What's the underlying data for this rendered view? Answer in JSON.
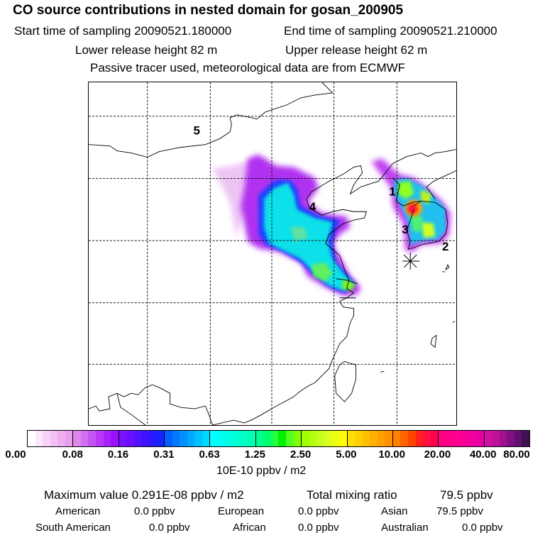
{
  "header": {
    "title": "CO  source contributions in nested domain for gosan_200905",
    "start_label": "Start time of sampling 20090521.180000",
    "end_label": "End time of sampling 20090521.210000",
    "lower_label": "Lower release height   82 m",
    "upper_label": "Upper release height   62 m",
    "tracer_note": "Passive tracer used, meteorological data are from ECMWF"
  },
  "map": {
    "region_labels": [
      "1",
      "2",
      "3",
      "4",
      "5"
    ],
    "receptor_marker": "asterisk-icon"
  },
  "colorbar": {
    "ticks": [
      "0.00",
      "0.08",
      "0.16",
      "0.31",
      "0.63",
      "1.25",
      "2.50",
      "5.00",
      "10.00",
      "20.00",
      "40.00",
      "80.00"
    ],
    "unit": "10E-10 ppbv / m2",
    "colors": [
      [
        "#ffffff",
        "#fbe6fb",
        "#f8d2f8",
        "#f3c0f4",
        "#eeaef0",
        "#e89ded"
      ],
      [
        "#de88ee",
        "#d070f0",
        "#c455f4",
        "#b83af8",
        "#aa22fa",
        "#9a10fc"
      ],
      [
        "#7a10ff",
        "#6810ff",
        "#5412ff",
        "#3e14ff",
        "#2a18ff",
        "#1424ff"
      ],
      [
        "#0060ff",
        "#0078ff",
        "#0090ff",
        "#00a8ff",
        "#00c0ff",
        "#00d8ff"
      ],
      [
        "#00ffff",
        "#00fff2",
        "#00ffe2",
        "#00ffd2",
        "#00ffc2",
        "#00ffb0"
      ],
      [
        "#00ff90",
        "#00ff70",
        "#20ff40",
        "#00f000",
        "#50ff20",
        "#80ff00"
      ],
      [
        "#a0ff00",
        "#b4ff10",
        "#c8ff20",
        "#daff20",
        "#ecff10",
        "#ffff00"
      ],
      [
        "#ffe000",
        "#ffd000",
        "#ffc000",
        "#ffb000",
        "#ffa000",
        "#ff9000"
      ],
      [
        "#ff8000",
        "#ff6400",
        "#ff4400",
        "#ff2020",
        "#ff1040",
        "#ff0050"
      ],
      [
        "#ff0080",
        "#ff0088",
        "#ff0090",
        "#f80098",
        "#f000a0",
        "#e800a4"
      ],
      [
        "#d010a0",
        "#c0109a",
        "#a01090",
        "#801080",
        "#601070",
        "#401050"
      ]
    ]
  },
  "stats": {
    "max_label": "Maximum value  0.291E-08 ppbv / m2",
    "total_label": "Total mixing ratio",
    "total_value": "79.5 ppbv",
    "regions": [
      {
        "name": "American",
        "value": "0.0 ppbv"
      },
      {
        "name": "European",
        "value": "0.0 ppbv"
      },
      {
        "name": "Asian",
        "value": "79.5 ppbv"
      },
      {
        "name": "South American",
        "value": "0.0 ppbv"
      },
      {
        "name": "African",
        "value": "0.0 ppbv"
      },
      {
        "name": "Australian",
        "value": "0.0 ppbv"
      }
    ]
  }
}
